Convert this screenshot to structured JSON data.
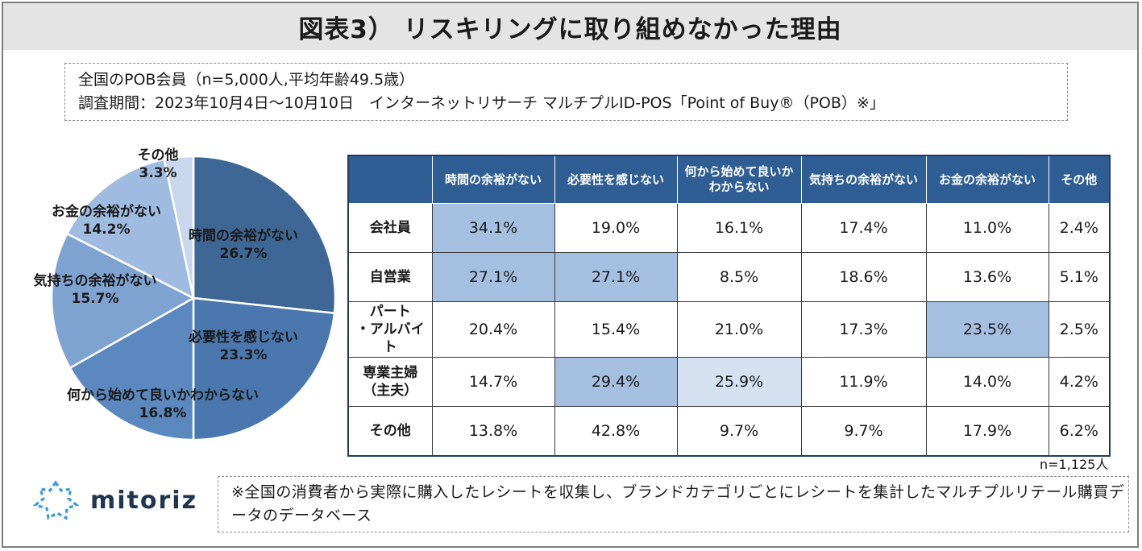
{
  "title": "図表3） リスキリングに取り組めなかった理由",
  "survey": {
    "line1": "全国のPOB会員（n=5,000人,平均年齢49.5歳）",
    "line2": "調査期間：2023年10月4日～10月10日　インターネットリサーチ マルチプルID-POS「Point of Buy®（POB）※」"
  },
  "chart_data": [
    {
      "type": "pie",
      "title": "",
      "slices": [
        {
          "label": "時間の余裕がない",
          "value": 26.7,
          "display": "26.7%",
          "color": "#3f6795"
        },
        {
          "label": "必要性を感じない",
          "value": 23.3,
          "display": "23.3%",
          "color": "#4a78ae"
        },
        {
          "label": "何から始めて良いかわからない",
          "value": 16.8,
          "display": "16.8%",
          "color": "#5b88bf"
        },
        {
          "label": "気持ちの余裕がない",
          "value": 15.7,
          "display": "15.7%",
          "color": "#7ea3d1"
        },
        {
          "label": "お金の余裕がない",
          "value": 14.2,
          "display": "14.2%",
          "color": "#9fbbe0"
        },
        {
          "label": "その他",
          "value": 3.3,
          "display": "3.3%",
          "color": "#c8d7ec"
        }
      ]
    },
    {
      "type": "table",
      "columns": [
        "時間の余裕がない",
        "必要性を感じない",
        "何から始めて良いかわからない",
        "気持ちの余裕がない",
        "お金の余裕がない",
        "その他"
      ],
      "rows": [
        {
          "label": "会社員",
          "values": [
            "34.1%",
            "19.0%",
            "16.1%",
            "17.4%",
            "11.0%",
            "2.4%"
          ]
        },
        {
          "label": "自営業",
          "values": [
            "27.1%",
            "27.1%",
            "8.5%",
            "18.6%",
            "13.6%",
            "5.1%"
          ]
        },
        {
          "label": "パート\n・アルバイト",
          "values": [
            "20.4%",
            "15.4%",
            "21.0%",
            "17.3%",
            "23.5%",
            "2.5%"
          ]
        },
        {
          "label": "専業主婦\n（主夫）",
          "values": [
            "14.7%",
            "29.4%",
            "25.9%",
            "11.9%",
            "14.0%",
            "4.2%"
          ]
        },
        {
          "label": "その他",
          "values": [
            "13.8%",
            "42.8%",
            "9.7%",
            "9.7%",
            "17.9%",
            "6.2%"
          ]
        }
      ],
      "n": "n=1,125人"
    }
  ],
  "table_headers": [
    "時間の余裕がない",
    "必要性を感じない",
    "何から始めて良いか\nわからない",
    "気持ちの余裕がない",
    "お金の余裕がない",
    "その他"
  ],
  "table_rows": [
    {
      "label": "会社員",
      "values": [
        "34.1%",
        "19.0%",
        "16.1%",
        "17.4%",
        "11.0%",
        "2.4%"
      ]
    },
    {
      "label": "自営業",
      "values": [
        "27.1%",
        "27.1%",
        "8.5%",
        "18.6%",
        "13.6%",
        "5.1%"
      ]
    },
    {
      "label": "パート\n・アルバイト",
      "values": [
        "20.4%",
        "15.4%",
        "21.0%",
        "17.3%",
        "23.5%",
        "2.5%"
      ]
    },
    {
      "label": "専業主婦\n（主夫）",
      "values": [
        "14.7%",
        "29.4%",
        "25.9%",
        "11.9%",
        "14.0%",
        "4.2%"
      ]
    },
    {
      "label": "その他",
      "values": [
        "13.8%",
        "42.8%",
        "9.7%",
        "9.7%",
        "17.9%",
        "6.2%"
      ]
    }
  ],
  "highlights": {
    "strong": [
      [
        0,
        0
      ],
      [
        1,
        0
      ],
      [
        1,
        1
      ],
      [
        2,
        4
      ],
      [
        3,
        1
      ]
    ],
    "light": [
      [
        3,
        2
      ]
    ]
  },
  "n_note": "n=1,125人",
  "logo_text": "mitoriz",
  "footnote": "※全国の消費者から実際に購入したレシートを収集し、ブランドカテゴリごとにレシートを集計したマルチプルリテール購買データのデータベース",
  "colors": {
    "header_bg": "#2f5e94",
    "highlight": "#a4bfe0",
    "highlight_light": "#d3e1f1",
    "title_bg": "#e4e4e4"
  }
}
